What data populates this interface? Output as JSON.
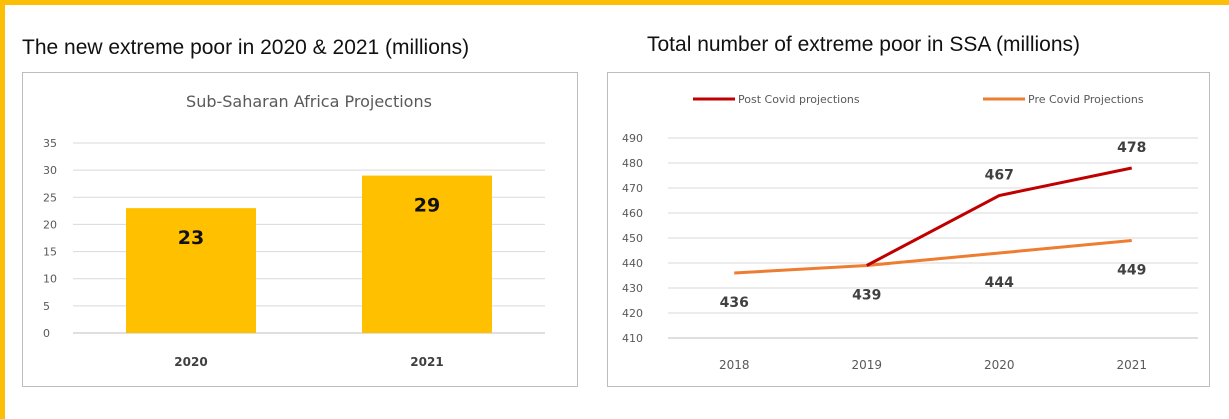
{
  "left_panel": {
    "heading": "The new extreme poor in 2020 & 2021 (millions)"
  },
  "right_panel": {
    "heading": "Total number of extreme poor in SSA (millions)"
  },
  "colors": {
    "frame": "#fbbf08",
    "bar": "#ffc000",
    "post_covid": "#c00000",
    "pre_covid": "#ed7d31",
    "grid": "#d9d9d9"
  },
  "chart_data": [
    {
      "type": "bar",
      "title": "Sub-Saharan Africa Projections",
      "categories": [
        "2020",
        "2021"
      ],
      "values": [
        23,
        29
      ],
      "data_labels": [
        "23",
        "29"
      ],
      "ylim": [
        0,
        35
      ],
      "yticks": [
        0,
        5,
        10,
        15,
        20,
        25,
        30,
        35
      ],
      "grid": true,
      "legend": "none"
    },
    {
      "type": "line",
      "categories": [
        "2018",
        "2019",
        "2020",
        "2021"
      ],
      "series": [
        {
          "name": "Post Covid projections",
          "values": [
            null,
            439,
            467,
            478
          ],
          "labels": [
            "",
            "",
            "467",
            "478"
          ]
        },
        {
          "name": "Pre Covid Projections",
          "values": [
            436,
            439,
            444,
            449
          ],
          "labels": [
            "436",
            "439",
            "444",
            "449"
          ]
        }
      ],
      "ylim": [
        410,
        490
      ],
      "yticks": [
        410,
        420,
        430,
        440,
        450,
        460,
        470,
        480,
        490
      ],
      "grid": true,
      "legend": "top"
    }
  ]
}
